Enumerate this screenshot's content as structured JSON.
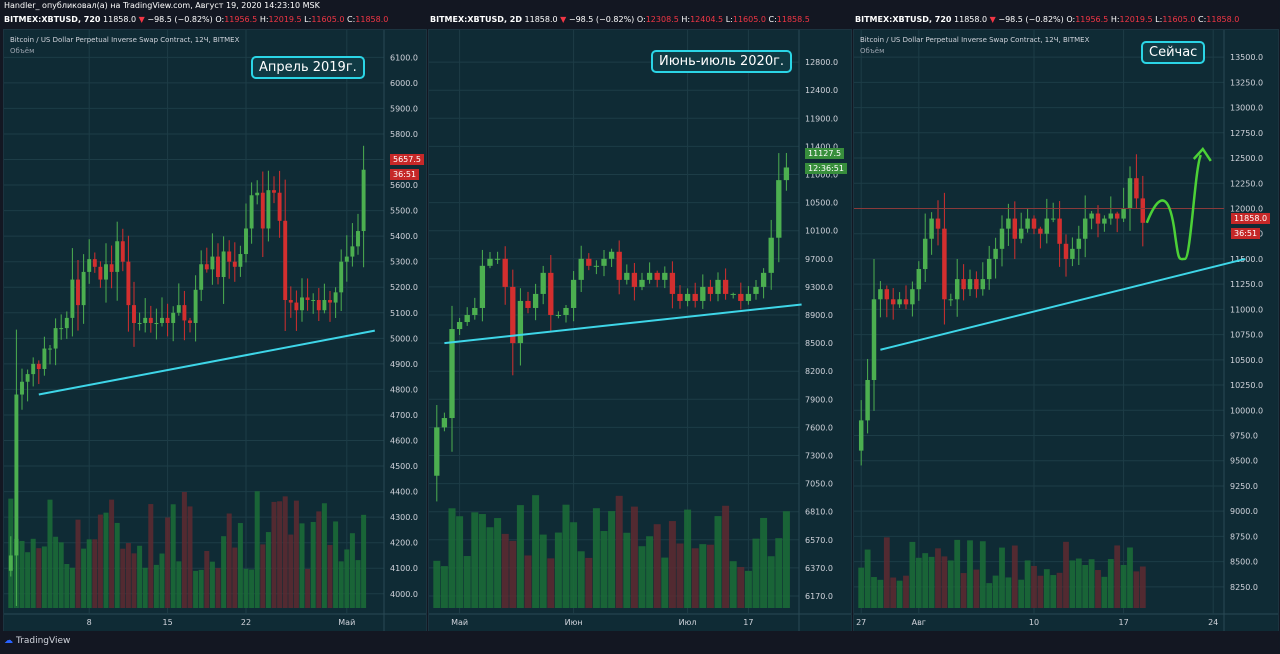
{
  "publisher_line": "Handler_ опубликовал(а) на TradingView.com, Август 19, 2020 14:23:10 MSK",
  "footer": {
    "logo_text": "TradingView"
  },
  "panels": [
    {
      "header": {
        "symbol": "BITMEX:XBTUSD, 720",
        "last": "11858.0",
        "change": "−98.5 (−0.82%)",
        "o": "11956.5",
        "h": "12019.5",
        "l": "11605.0",
        "c": "11858.0"
      },
      "symbol_title": "Bitcoin / US Dollar Perpetual Inverse Swap Contract, 12Ч, BITMEX",
      "volume_label": "Объём",
      "annotation": "Апрель 2019г.",
      "price_tag": {
        "value": "5657.5",
        "timer": "36:51",
        "color": "#c62828"
      }
    },
    {
      "header": {
        "symbol": "BITMEX:XBTUSD, 2D",
        "last": "11858.0",
        "change": "−98.5 (−0.82%)",
        "o": "12308.5",
        "h": "12404.5",
        "l": "11605.0",
        "c": "11858.5"
      },
      "symbol_title": "",
      "volume_label": "",
      "annotation": "Июнь-июль 2020г.",
      "price_tag": {
        "value": "11127.5",
        "timer": "12:36:51",
        "color": "#388e3c"
      }
    },
    {
      "header": {
        "symbol": "BITMEX:XBTUSD, 720",
        "last": "11858.0",
        "change": "−98.5 (−0.82%)",
        "o": "11956.5",
        "h": "12019.5",
        "l": "11605.0",
        "c": "11858.0"
      },
      "symbol_title": "Bitcoin / US Dollar Perpetual Inverse Swap Contract, 12Ч, BITMEX",
      "volume_label": "Объём",
      "annotation": "Сейчас",
      "price_tag": {
        "value": "11858.0",
        "timer": "36:51",
        "color": "#c62828"
      }
    }
  ],
  "chart_data": [
    {
      "type": "candlestick",
      "y_ticks": [
        4000,
        4100,
        4200,
        4300,
        4400,
        4500,
        4600,
        4700,
        4800,
        4900,
        5000,
        5100,
        5200,
        5300,
        5400,
        5500,
        5600,
        5700,
        5800,
        5900,
        6000,
        6100
      ],
      "ylim": [
        3960,
        6160
      ],
      "x_ticks": [
        {
          "label": "8",
          "i": 14
        },
        {
          "label": "15",
          "i": 28
        },
        {
          "label": "22",
          "i": 42
        },
        {
          "label": "Май",
          "i": 60
        }
      ],
      "closes": [
        4150,
        4780,
        4830,
        4860,
        4900,
        4880,
        4960,
        4960,
        5040,
        5040,
        5080,
        5230,
        5130,
        5260,
        5310,
        5280,
        5230,
        5290,
        5260,
        5380,
        5300,
        5130,
        5060,
        5060,
        5080,
        5060,
        5060,
        5080,
        5060,
        5100,
        5130,
        5070,
        5060,
        5190,
        5290,
        5270,
        5320,
        5240,
        5340,
        5300,
        5280,
        5330,
        5430,
        5560,
        5570,
        5430,
        5580,
        5570,
        5460,
        5150,
        5140,
        5110,
        5160,
        5150,
        5150,
        5110,
        5150,
        5140,
        5180,
        5300,
        5320,
        5360,
        5420,
        5660
      ],
      "trendline": {
        "from": {
          "i": 5,
          "price": 4780
        },
        "to": {
          "i": 65,
          "price": 5030
        }
      },
      "volume_color_up": "#1b7a3a",
      "volume_color_down": "#6e2a30",
      "up_color": "#4caf50",
      "down_color": "#d32f2f"
    },
    {
      "type": "candlestick",
      "y_ticks": [
        6170,
        6370,
        6570,
        6810,
        7050,
        7300,
        7600,
        7900,
        8200,
        8500,
        8900,
        9300,
        9700,
        10100,
        10500,
        11000,
        11400,
        11900,
        12400,
        12800
      ],
      "y_tick_pos": [
        0.0,
        0.05,
        0.1,
        0.15,
        0.2,
        0.25,
        0.3,
        0.35,
        0.4,
        0.45,
        0.5,
        0.55,
        0.6,
        0.65,
        0.7,
        0.75,
        0.8,
        0.85,
        0.9,
        0.95
      ],
      "x_ticks": [
        {
          "label": "Май",
          "i": 3
        },
        {
          "label": "Июн",
          "i": 18
        },
        {
          "label": "Июл",
          "i": 33
        },
        {
          "label": "17",
          "i": 41
        }
      ],
      "closes": [
        7600,
        7700,
        8700,
        8800,
        8900,
        9000,
        9600,
        9700,
        9700,
        9300,
        8500,
        9100,
        9000,
        9200,
        9500,
        8900,
        8900,
        9000,
        9400,
        9700,
        9600,
        9600,
        9700,
        9800,
        9400,
        9500,
        9300,
        9400,
        9500,
        9400,
        9500,
        9200,
        9100,
        9200,
        9100,
        9300,
        9200,
        9400,
        9200,
        9200,
        9100,
        9200,
        9300,
        9500,
        10000,
        10900,
        11100
      ],
      "trendline": {
        "from": {
          "i": 1,
          "price": 8500
        },
        "to": {
          "i": 48,
          "price": 9050
        }
      },
      "up_color": "#4caf50",
      "down_color": "#d32f2f"
    },
    {
      "type": "candlestick",
      "y_ticks": [
        8250,
        8500,
        8750,
        9000,
        9250,
        9500,
        9750,
        10000,
        10250,
        10500,
        10750,
        11000,
        11250,
        11500,
        11750,
        12000,
        12250,
        12500,
        12750,
        13000,
        13250,
        13500
      ],
      "ylim": [
        8080,
        13650
      ],
      "x_ticks": [
        {
          "label": "27",
          "i": 0
        },
        {
          "label": "Авг",
          "i": 9
        },
        {
          "label": "10",
          "i": 27
        },
        {
          "label": "17",
          "i": 41
        },
        {
          "label": "24",
          "i": 55
        }
      ],
      "closes": [
        9900,
        10300,
        11100,
        11200,
        11100,
        11050,
        11100,
        11050,
        11200,
        11400,
        11700,
        11900,
        11800,
        11100,
        11100,
        11300,
        11200,
        11300,
        11200,
        11300,
        11500,
        11600,
        11800,
        11900,
        11700,
        11800,
        11900,
        11800,
        11750,
        11900,
        11900,
        11650,
        11500,
        11600,
        11700,
        11900,
        11950,
        11850,
        11900,
        11950,
        11900,
        12000,
        12300,
        12100,
        11858
      ],
      "trendline": {
        "from": {
          "i": 3,
          "price": 10600
        },
        "to": {
          "i": 60,
          "price": 11500
        }
      },
      "resistance": 12000,
      "projection": "green wave up to arrow above 12500",
      "up_color": "#4caf50",
      "down_color": "#d32f2f"
    }
  ]
}
